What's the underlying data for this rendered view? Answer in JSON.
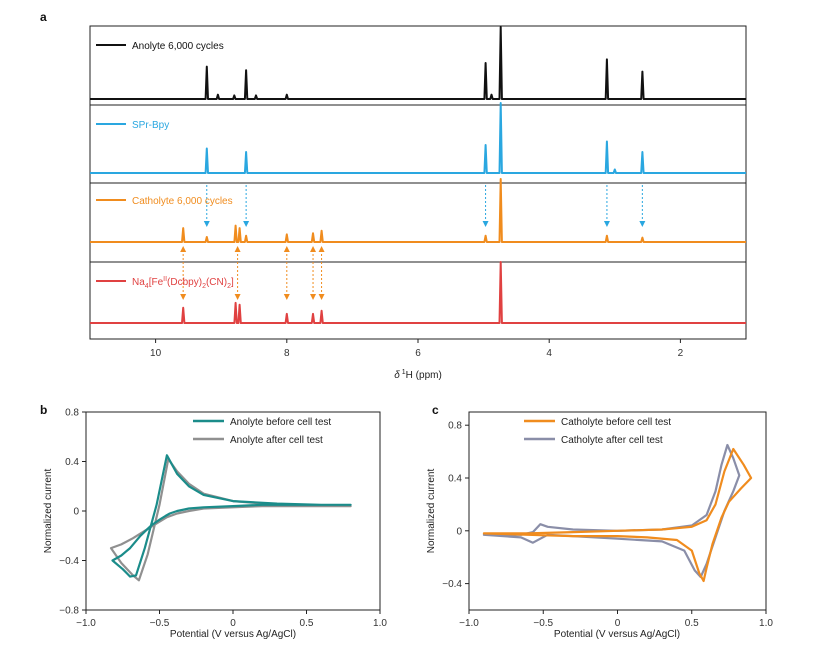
{
  "chart_data": [
    {
      "type": "line",
      "panel": "a",
      "title": "",
      "xlabel": "δ ¹H (ppm)",
      "xlim": [
        11,
        1
      ],
      "xticks": [
        10,
        8,
        6,
        4,
        2
      ],
      "tick_labels": [
        "10",
        "8",
        "6",
        "4",
        "2"
      ],
      "series": [
        {
          "name": "Anolyte 6,000 cycles",
          "color": "#111111",
          "peaks": [
            [
              9.22,
              0.45
            ],
            [
              9.05,
              0.06
            ],
            [
              8.8,
              0.05
            ],
            [
              8.62,
              0.4
            ],
            [
              8.47,
              0.05
            ],
            [
              8.0,
              0.06
            ],
            [
              4.97,
              0.5
            ],
            [
              4.88,
              0.06
            ],
            [
              4.74,
              1.0
            ],
            [
              3.12,
              0.55
            ],
            [
              2.58,
              0.38
            ]
          ]
        },
        {
          "name": "SPr-Bpy",
          "color": "#2aa7e0",
          "peaks": [
            [
              9.22,
              0.35
            ],
            [
              8.62,
              0.3
            ],
            [
              4.97,
              0.4
            ],
            [
              4.74,
              1.0
            ],
            [
              3.12,
              0.45
            ],
            [
              3.0,
              0.05
            ],
            [
              2.58,
              0.3
            ]
          ]
        },
        {
          "name": "Catholyte 6,000 cycles",
          "color": "#f08c1e",
          "peaks": [
            [
              9.58,
              0.22
            ],
            [
              9.22,
              0.08
            ],
            [
              8.78,
              0.26
            ],
            [
              8.72,
              0.22
            ],
            [
              8.62,
              0.1
            ],
            [
              8.0,
              0.12
            ],
            [
              7.6,
              0.14
            ],
            [
              7.47,
              0.18
            ],
            [
              4.97,
              0.1
            ],
            [
              4.74,
              1.0
            ],
            [
              3.12,
              0.1
            ],
            [
              2.58,
              0.07
            ]
          ]
        },
        {
          "name": "Na4[FeII(Dcbpy)2(CN)2]",
          "color": "#e04141",
          "peaks": [
            [
              9.58,
              0.25
            ],
            [
              8.78,
              0.33
            ],
            [
              8.72,
              0.3
            ],
            [
              8.0,
              0.15
            ],
            [
              7.6,
              0.15
            ],
            [
              7.47,
              0.2
            ],
            [
              4.74,
              1.0
            ]
          ]
        }
      ],
      "legend_label_parts": {
        "anolyte": "Anolyte 6,000 cycles",
        "spr": "SPr-Bpy",
        "catholyte": "Catholyte 6,000 cycles",
        "na_main": "Na",
        "na_sub1": "4",
        "na_fe": "[Fe",
        "na_sup": "II",
        "na_dc": "(Dcbpy)",
        "na_sub2": "2",
        "na_cn": "(CN)",
        "na_sub3": "2",
        "na_close": "]"
      },
      "xlabel_parts": {
        "delta": "δ",
        "sup": "1",
        "rest": "H (ppm)"
      },
      "blue_arrows_ppm": [
        9.22,
        8.62,
        4.97,
        3.12,
        2.58
      ],
      "orange_arrows_ppm": [
        9.58,
        8.75,
        8.0,
        7.6,
        7.47
      ]
    },
    {
      "type": "line",
      "panel": "b",
      "xlabel": "Potential (V versus Ag/AgCl)",
      "ylabel": "Normalized current",
      "xlim": [
        -1.0,
        1.0
      ],
      "ylim": [
        -0.8,
        0.8
      ],
      "xticks": [
        -1.0,
        -0.5,
        0,
        0.5,
        1.0
      ],
      "xtick_labels": [
        "−1.0",
        "−0.5",
        "0",
        "0.5",
        "1.0"
      ],
      "yticks": [
        -0.8,
        -0.4,
        0,
        0.4,
        0.8
      ],
      "ytick_labels": [
        "−0.8",
        "−0.4",
        "0",
        "0.4",
        "0.8"
      ],
      "series": [
        {
          "name": "Anolyte before cell test",
          "color": "#1b8c8a",
          "x": [
            0.8,
            0.5,
            0.2,
            0.0,
            -0.2,
            -0.3,
            -0.38,
            -0.43,
            -0.46,
            -0.5,
            -0.56,
            -0.63,
            -0.7,
            -0.76,
            -0.82,
            -0.75,
            -0.7,
            -0.66,
            -0.6,
            -0.52,
            -0.45,
            -0.38,
            -0.3,
            -0.2,
            0.0,
            0.3,
            0.6,
            0.8
          ],
          "y": [
            0.05,
            0.05,
            0.05,
            0.04,
            0.03,
            0.02,
            0.0,
            -0.02,
            -0.04,
            -0.07,
            -0.12,
            -0.2,
            -0.3,
            -0.36,
            -0.4,
            -0.47,
            -0.53,
            -0.52,
            -0.3,
            0.05,
            0.45,
            0.3,
            0.2,
            0.13,
            0.08,
            0.06,
            0.05,
            0.05
          ]
        },
        {
          "name": "Anolyte after cell test",
          "color": "#909090",
          "x": [
            0.8,
            0.5,
            0.2,
            0.0,
            -0.2,
            -0.3,
            -0.38,
            -0.45,
            -0.52,
            -0.6,
            -0.68,
            -0.76,
            -0.83,
            -0.76,
            -0.68,
            -0.64,
            -0.58,
            -0.5,
            -0.44,
            -0.38,
            -0.3,
            -0.2,
            0.0,
            0.3,
            0.6,
            0.8
          ],
          "y": [
            0.04,
            0.04,
            0.04,
            0.03,
            0.02,
            0.0,
            -0.02,
            -0.05,
            -0.1,
            -0.16,
            -0.22,
            -0.27,
            -0.3,
            -0.42,
            -0.52,
            -0.56,
            -0.35,
            0.05,
            0.42,
            0.32,
            0.22,
            0.14,
            0.08,
            0.05,
            0.04,
            0.04
          ]
        }
      ]
    },
    {
      "type": "line",
      "panel": "c",
      "xlabel": "Potential (V versus Ag/AgCl)",
      "ylabel": "Normalized current",
      "xlim": [
        -1.0,
        1.0
      ],
      "ylim": [
        -0.6,
        0.9
      ],
      "xticks": [
        -1.0,
        -0.5,
        0,
        0.5,
        1.0
      ],
      "xtick_labels": [
        "−1.0",
        "−0.5",
        "0",
        "0.5",
        "1.0"
      ],
      "yticks": [
        -0.4,
        0,
        0.4,
        0.8
      ],
      "ytick_labels": [
        "−0.4",
        "0",
        "0.4",
        "0.8"
      ],
      "series": [
        {
          "name": "Catholyte before cell test",
          "color": "#f08c1e",
          "x": [
            -0.9,
            -0.6,
            -0.3,
            0.0,
            0.3,
            0.5,
            0.6,
            0.66,
            0.72,
            0.78,
            0.85,
            0.9,
            0.83,
            0.75,
            0.7,
            0.64,
            0.6,
            0.58,
            0.55,
            0.5,
            0.4,
            0.2,
            0.0,
            -0.3,
            -0.6,
            -0.9
          ],
          "y": [
            -0.02,
            -0.02,
            -0.01,
            0.0,
            0.01,
            0.03,
            0.08,
            0.2,
            0.45,
            0.62,
            0.5,
            0.4,
            0.32,
            0.22,
            0.1,
            -0.1,
            -0.28,
            -0.38,
            -0.32,
            -0.15,
            -0.07,
            -0.05,
            -0.04,
            -0.04,
            -0.03,
            -0.02
          ]
        },
        {
          "name": "Catholyte after cell test",
          "color": "#8a8ea8",
          "x": [
            -0.9,
            -0.65,
            -0.57,
            -0.52,
            -0.47,
            -0.3,
            0.0,
            0.3,
            0.5,
            0.6,
            0.66,
            0.7,
            0.74,
            0.78,
            0.82,
            0.78,
            0.72,
            0.66,
            0.6,
            0.56,
            0.52,
            0.45,
            0.3,
            0.0,
            -0.3,
            -0.47,
            -0.52,
            -0.57,
            -0.65,
            -0.9
          ],
          "y": [
            -0.03,
            -0.03,
            -0.01,
            0.05,
            0.03,
            0.01,
            0.0,
            0.01,
            0.04,
            0.12,
            0.3,
            0.5,
            0.65,
            0.55,
            0.42,
            0.3,
            0.15,
            -0.05,
            -0.25,
            -0.35,
            -0.3,
            -0.15,
            -0.08,
            -0.06,
            -0.04,
            -0.03,
            -0.06,
            -0.09,
            -0.05,
            -0.03
          ]
        }
      ]
    }
  ],
  "panel_letters": {
    "a": "a",
    "b": "b",
    "c": "c"
  }
}
